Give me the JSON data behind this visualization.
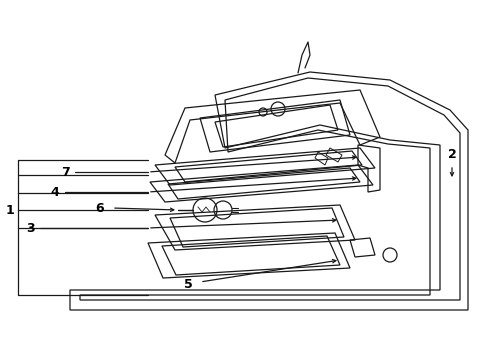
{
  "bg_color": "#ffffff",
  "line_color": "#1a1a1a",
  "lw": 0.9,
  "figsize": [
    4.9,
    3.6
  ],
  "dpi": 100
}
